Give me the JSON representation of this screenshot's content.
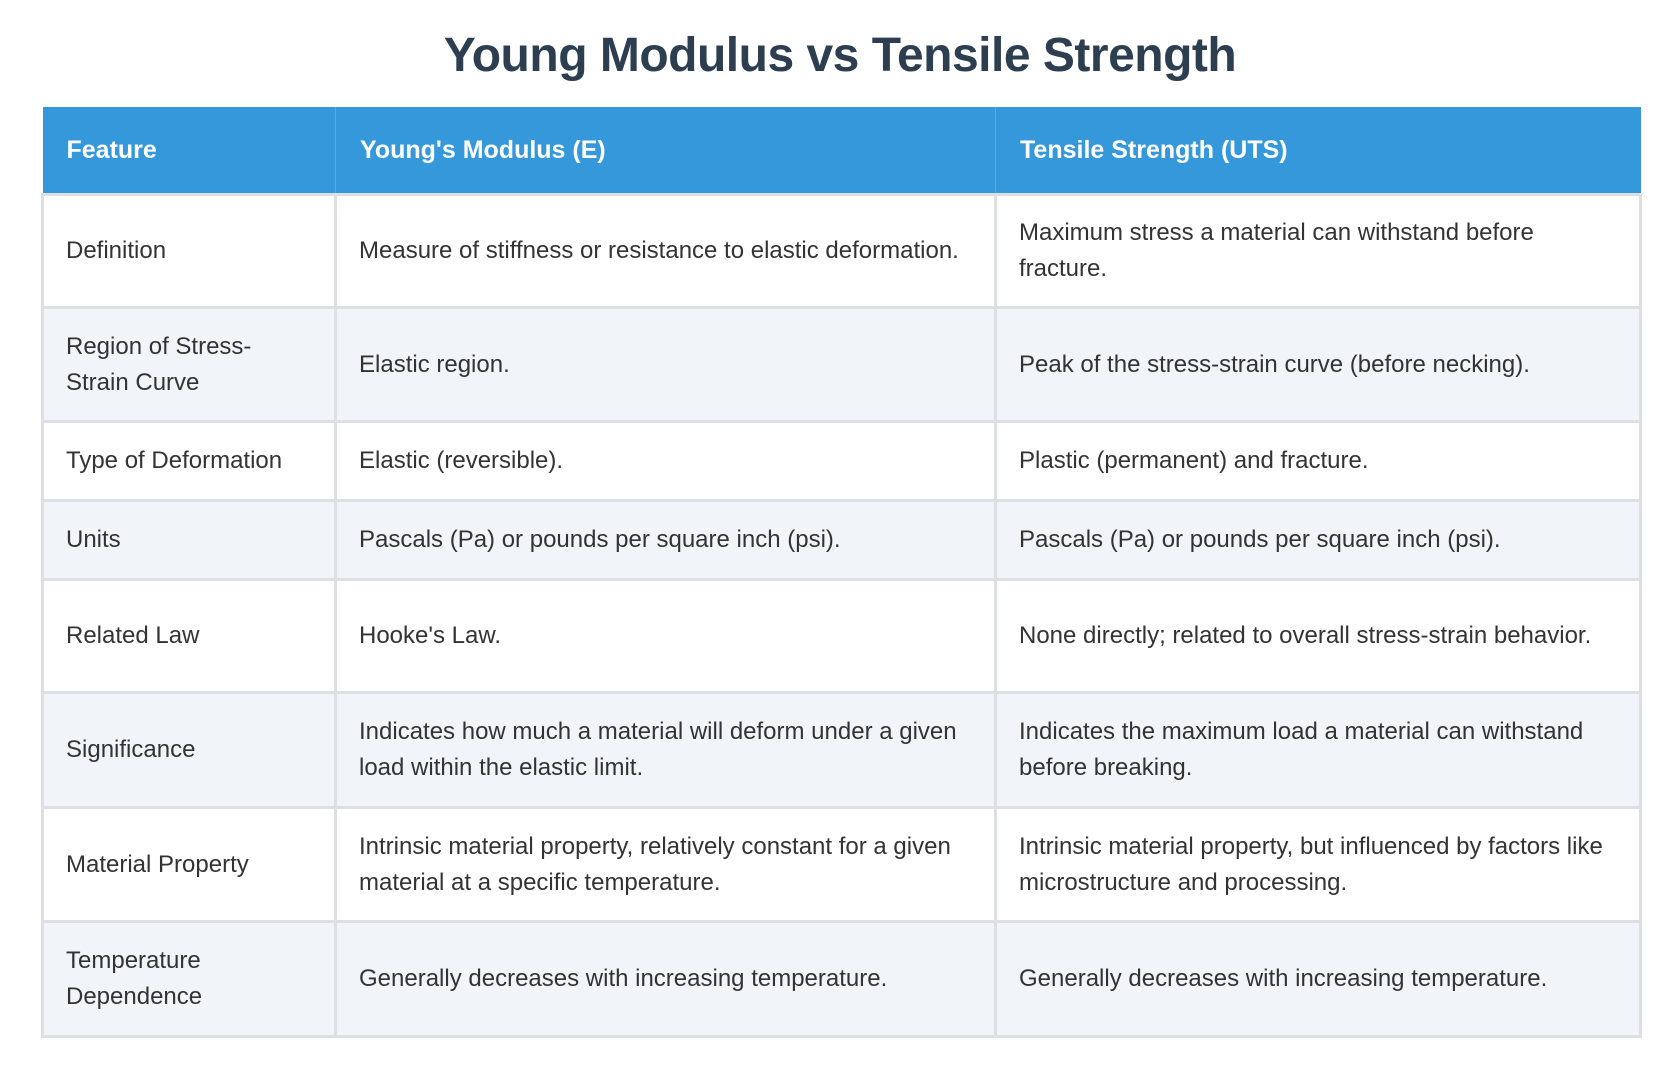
{
  "title": "Young Modulus vs Tensile Strength",
  "headers": [
    "Feature",
    "Young's Modulus (E)",
    "Tensile Strength (UTS)"
  ],
  "rows": [
    [
      "Definition",
      "Measure of stiffness or resistance to elastic deformation.",
      "Maximum stress a material can withstand before fracture."
    ],
    [
      "Region of Stress-Strain Curve",
      "Elastic region.",
      "Peak of the stress-strain curve (before necking)."
    ],
    [
      "Type of Deformation",
      "Elastic (reversible).",
      "Plastic (permanent) and fracture."
    ],
    [
      "Units",
      "Pascals (Pa) or pounds per square inch (psi).",
      "Pascals (Pa) or pounds per square inch (psi)."
    ],
    [
      "Related Law",
      "Hooke's Law.",
      "None directly; related to overall stress-strain behavior."
    ],
    [
      "Significance",
      "Indicates how much a material will deform under a given load within the elastic limit.",
      "Indicates the maximum load a material can withstand before breaking."
    ],
    [
      "Material Property",
      "Intrinsic material property, relatively constant for a given material at a specific temperature.",
      "Intrinsic material property, but influenced by factors like microstructure and processing."
    ],
    [
      "Temperature Dependence",
      "Generally decreases with increasing temperature.",
      "Generally decreases with increasing temperature."
    ]
  ]
}
